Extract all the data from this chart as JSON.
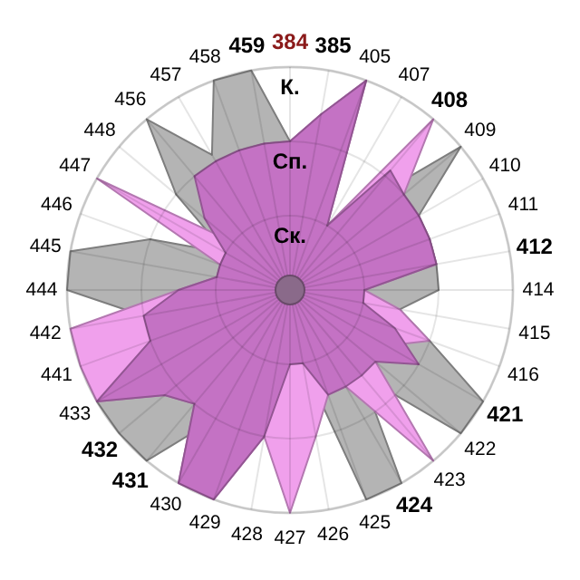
{
  "chart_data": {
    "type": "radar",
    "categories": [
      "384",
      "385",
      "405",
      "407",
      "408",
      "409",
      "410",
      "411",
      "412",
      "414",
      "415",
      "416",
      "421",
      "422",
      "423",
      "424",
      "425",
      "426",
      "427",
      "428",
      "429",
      "430",
      "431",
      "432",
      "433",
      "441",
      "442",
      "444",
      "445",
      "446",
      "447",
      "448",
      "456",
      "457",
      "458",
      "459"
    ],
    "ylim": [
      0,
      3
    ],
    "yticks": [
      {
        "value": 1,
        "label": "Ск."
      },
      {
        "value": 2,
        "label": "Сп."
      },
      {
        "value": 3,
        "label": "К."
      }
    ],
    "grid": true,
    "series": [
      {
        "color": "#b4b4b4",
        "values": [
          2,
          1,
          1,
          1,
          1.5,
          3,
          2,
          2,
          2,
          2,
          1.5,
          2,
          3,
          3,
          1.5,
          3,
          3,
          1,
          1,
          1,
          2,
          2,
          3,
          3,
          3,
          2,
          2,
          3,
          3,
          2,
          1,
          2,
          3,
          2.1,
          3,
          3
        ]
      },
      {
        "color": "#f0a0ec",
        "values": [
          2,
          2.4,
          3,
          1,
          3,
          2,
          2,
          2,
          2,
          1,
          1.5,
          2,
          1.5,
          1.5,
          3,
          1.5,
          1.5,
          2,
          3,
          2,
          3,
          3,
          2,
          2.2,
          3,
          3,
          3,
          1.5,
          1,
          1,
          3,
          1,
          1.5,
          2,
          2,
          2
        ]
      },
      {
        "color": "#c472c4",
        "values": [
          2,
          2.4,
          3,
          1,
          2.1,
          2,
          2,
          2,
          2,
          1,
          1,
          1.5,
          2,
          1.5,
          1.5,
          1.5,
          1.5,
          1,
          1,
          2,
          3,
          3,
          2,
          2.2,
          3,
          2,
          2,
          1.5,
          1,
          1,
          1,
          1.5,
          2,
          2,
          2,
          2
        ]
      }
    ]
  }
}
